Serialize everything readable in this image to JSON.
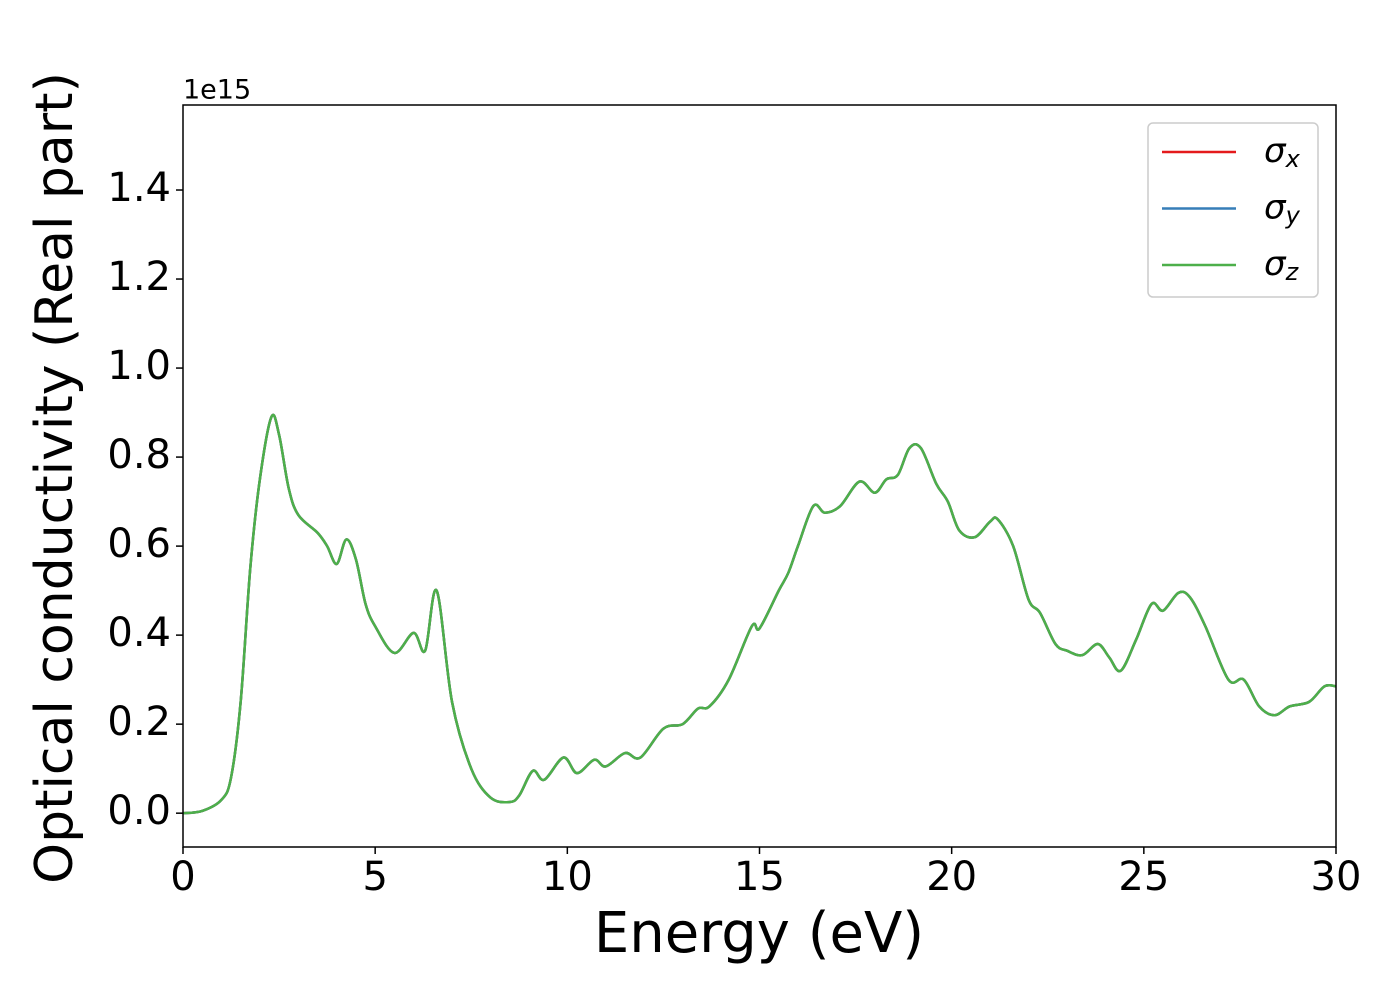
{
  "chart_data": {
    "type": "line",
    "xlabel": "Energy (eV)",
    "ylabel": "Optical conductivity (Real part)",
    "y_offset_label": "1e15",
    "x": [
      0,
      0.5,
      1.0,
      1.25,
      1.5,
      1.75,
      2.0,
      2.3,
      2.5,
      2.75,
      3.0,
      3.5,
      3.75,
      4.0,
      4.25,
      4.5,
      4.75,
      5.0,
      5.5,
      6.0,
      6.3,
      6.6,
      7.0,
      7.5,
      8.0,
      8.5,
      8.75,
      9.1,
      9.4,
      9.9,
      10.25,
      10.7,
      11.0,
      11.5,
      11.9,
      12.5,
      13.0,
      13.4,
      13.7,
      14.2,
      14.8,
      15.0,
      15.5,
      15.75,
      16.0,
      16.4,
      16.7,
      17.1,
      17.6,
      18.0,
      18.3,
      18.6,
      18.9,
      19.2,
      19.6,
      19.9,
      20.2,
      20.6,
      21.0,
      21.2,
      21.6,
      22.0,
      22.3,
      22.7,
      23.0,
      23.4,
      23.8,
      24.1,
      24.4,
      24.8,
      25.2,
      25.5,
      25.9,
      26.2,
      26.6,
      27.2,
      27.6,
      28.0,
      28.4,
      28.8,
      29.3,
      29.7,
      30
    ],
    "series": [
      {
        "name": "σx",
        "color": "#e41a1c",
        "values": [
          0.0,
          0.005,
          0.03,
          0.08,
          0.25,
          0.55,
          0.75,
          0.89,
          0.85,
          0.73,
          0.67,
          0.63,
          0.6,
          0.56,
          0.615,
          0.57,
          0.47,
          0.42,
          0.36,
          0.405,
          0.365,
          0.5,
          0.25,
          0.1,
          0.035,
          0.025,
          0.04,
          0.095,
          0.075,
          0.125,
          0.09,
          0.12,
          0.105,
          0.135,
          0.125,
          0.19,
          0.2,
          0.235,
          0.24,
          0.3,
          0.42,
          0.415,
          0.5,
          0.54,
          0.6,
          0.69,
          0.675,
          0.69,
          0.745,
          0.72,
          0.75,
          0.76,
          0.82,
          0.82,
          0.74,
          0.7,
          0.635,
          0.62,
          0.655,
          0.66,
          0.6,
          0.48,
          0.45,
          0.38,
          0.365,
          0.355,
          0.38,
          0.35,
          0.32,
          0.39,
          0.47,
          0.455,
          0.495,
          0.485,
          0.42,
          0.3,
          0.3,
          0.24,
          0.22,
          0.24,
          0.25,
          0.285,
          0.285
        ]
      },
      {
        "name": "σy",
        "color": "#377eb8",
        "values": [
          0.0,
          0.005,
          0.03,
          0.08,
          0.25,
          0.55,
          0.75,
          0.89,
          0.85,
          0.73,
          0.67,
          0.63,
          0.6,
          0.56,
          0.615,
          0.57,
          0.47,
          0.42,
          0.36,
          0.405,
          0.365,
          0.5,
          0.25,
          0.1,
          0.035,
          0.025,
          0.04,
          0.095,
          0.075,
          0.125,
          0.09,
          0.12,
          0.105,
          0.135,
          0.125,
          0.19,
          0.2,
          0.235,
          0.24,
          0.3,
          0.42,
          0.415,
          0.5,
          0.54,
          0.6,
          0.69,
          0.675,
          0.69,
          0.745,
          0.72,
          0.75,
          0.76,
          0.82,
          0.82,
          0.74,
          0.7,
          0.635,
          0.62,
          0.655,
          0.66,
          0.6,
          0.48,
          0.45,
          0.38,
          0.365,
          0.355,
          0.38,
          0.35,
          0.32,
          0.39,
          0.47,
          0.455,
          0.495,
          0.485,
          0.42,
          0.3,
          0.3,
          0.24,
          0.22,
          0.24,
          0.25,
          0.285,
          0.285
        ]
      },
      {
        "name": "σz",
        "color": "#4daf4a",
        "values": [
          0.0,
          0.005,
          0.03,
          0.08,
          0.25,
          0.55,
          0.75,
          0.89,
          0.85,
          0.73,
          0.67,
          0.63,
          0.6,
          0.56,
          0.615,
          0.57,
          0.47,
          0.42,
          0.36,
          0.405,
          0.365,
          0.5,
          0.25,
          0.1,
          0.035,
          0.025,
          0.04,
          0.095,
          0.075,
          0.125,
          0.09,
          0.12,
          0.105,
          0.135,
          0.125,
          0.19,
          0.2,
          0.235,
          0.24,
          0.3,
          0.42,
          0.415,
          0.5,
          0.54,
          0.6,
          0.69,
          0.675,
          0.69,
          0.745,
          0.72,
          0.75,
          0.76,
          0.82,
          0.82,
          0.74,
          0.7,
          0.635,
          0.62,
          0.655,
          0.66,
          0.6,
          0.48,
          0.45,
          0.38,
          0.365,
          0.355,
          0.38,
          0.35,
          0.32,
          0.39,
          0.47,
          0.455,
          0.495,
          0.485,
          0.42,
          0.3,
          0.3,
          0.24,
          0.22,
          0.24,
          0.25,
          0.285,
          0.285
        ]
      }
    ],
    "xlim": [
      0,
      30
    ],
    "xticks": [
      0,
      5,
      10,
      15,
      20,
      25,
      30
    ],
    "ylim": [
      -0.076,
      1.591
    ],
    "yticks": [
      {
        "value": 0,
        "label": "0.0"
      },
      {
        "value": 0.2,
        "label": "0.2"
      },
      {
        "value": 0.4,
        "label": "0.4"
      },
      {
        "value": 0.6,
        "label": "0.6"
      },
      {
        "value": 0.8,
        "label": "0.8"
      },
      {
        "value": 1.0,
        "label": "1.0"
      },
      {
        "value": 1.2,
        "label": "1.2"
      },
      {
        "value": 1.4,
        "label": "1.4"
      }
    ],
    "legend": "upper right",
    "grid": false
  }
}
